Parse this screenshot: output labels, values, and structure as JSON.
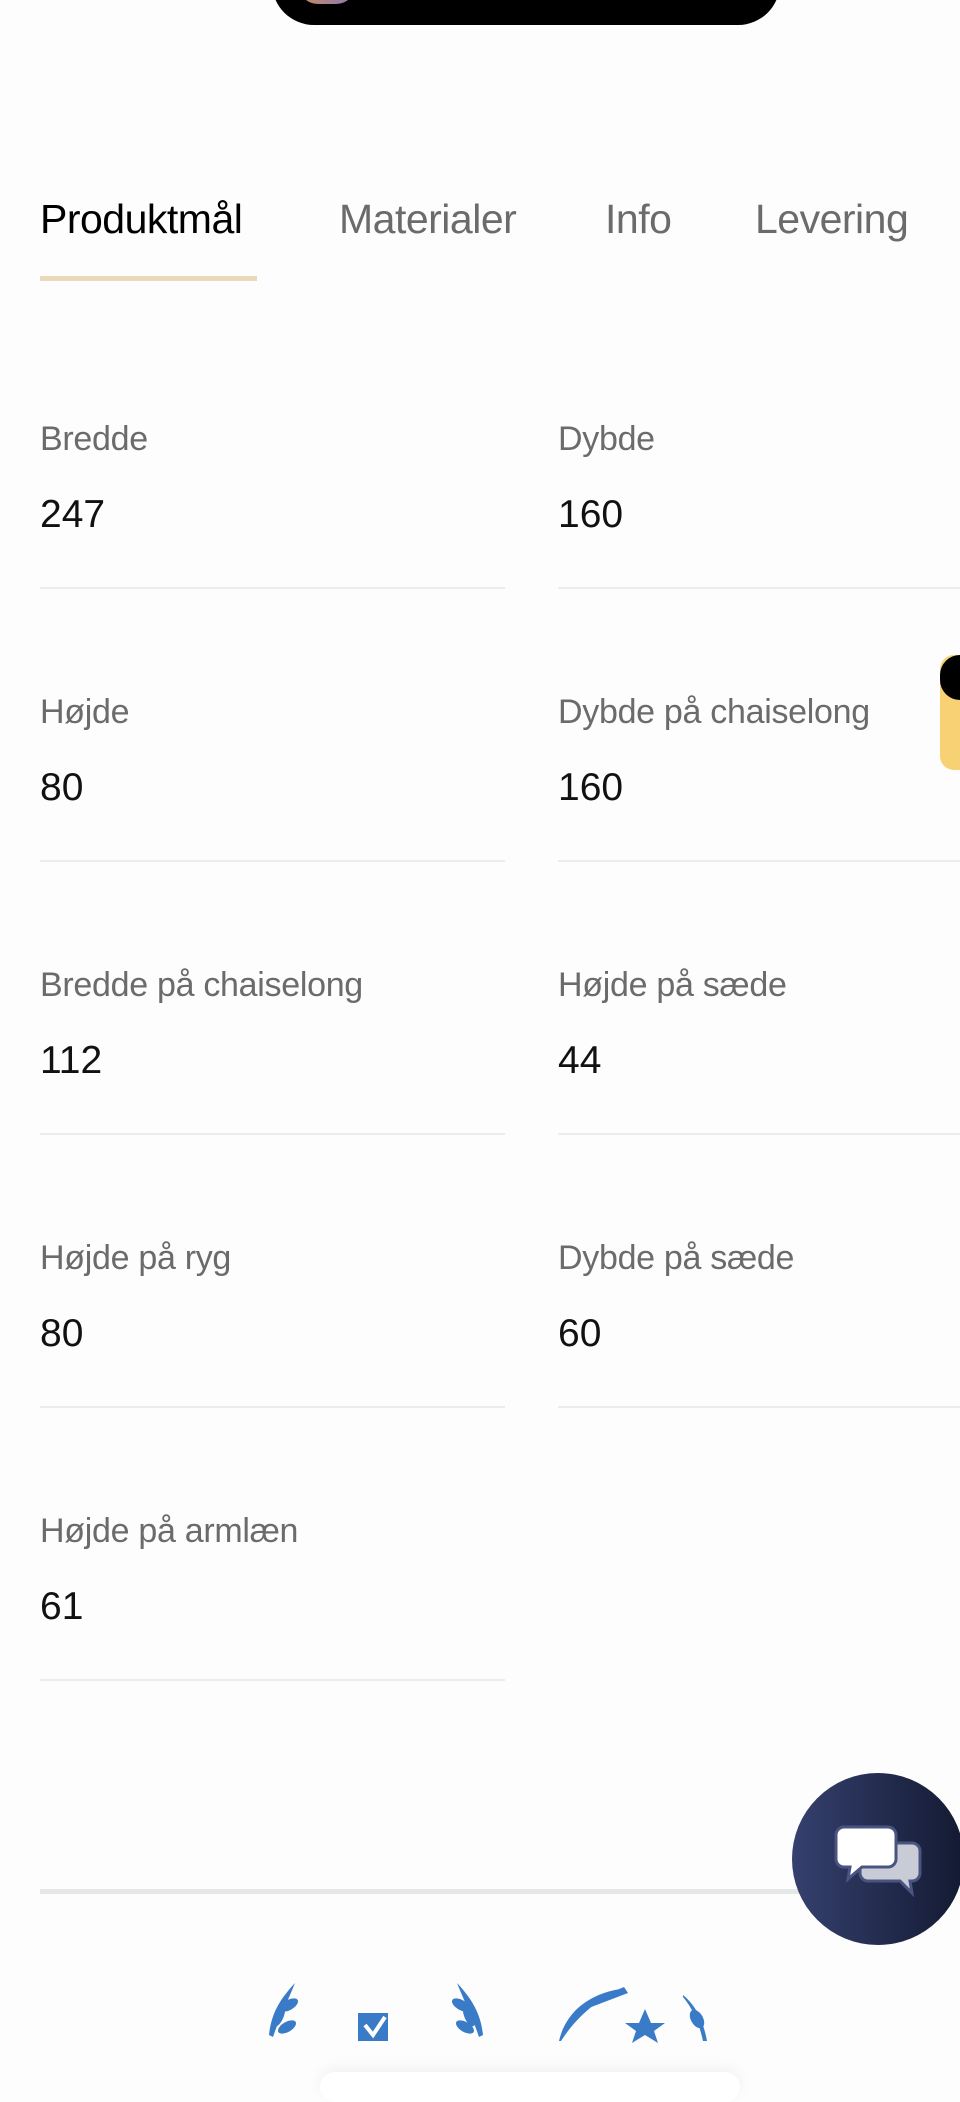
{
  "tabs": [
    {
      "label": "Produktmål",
      "active": true
    },
    {
      "label": "Materialer",
      "active": false
    },
    {
      "label": "Info",
      "active": false
    },
    {
      "label": "Levering",
      "active": false
    }
  ],
  "specs": [
    {
      "label": "Bredde",
      "value": "247"
    },
    {
      "label": "Dybde",
      "value": "160"
    },
    {
      "label": "Højde",
      "value": "80"
    },
    {
      "label": "Dybde på chaiselong",
      "value": "160"
    },
    {
      "label": "Bredde på chaiselong",
      "value": "112"
    },
    {
      "label": "Højde på sæde",
      "value": "44"
    },
    {
      "label": "Højde på ryg",
      "value": "80"
    },
    {
      "label": "Dybde på sæde",
      "value": "60"
    },
    {
      "label": "Højde på armlæn",
      "value": "61"
    }
  ],
  "colors": {
    "tab_underline": "#ead9bb",
    "chat_button": "#2a3360",
    "badge_blue": "#3a7bc8",
    "side_tab": "#f7d173"
  },
  "icons": {
    "chat": "chat-bubbles-icon",
    "badge1": "laurel-check-badge-icon",
    "badge2": "wheat-star-badge-icon"
  }
}
